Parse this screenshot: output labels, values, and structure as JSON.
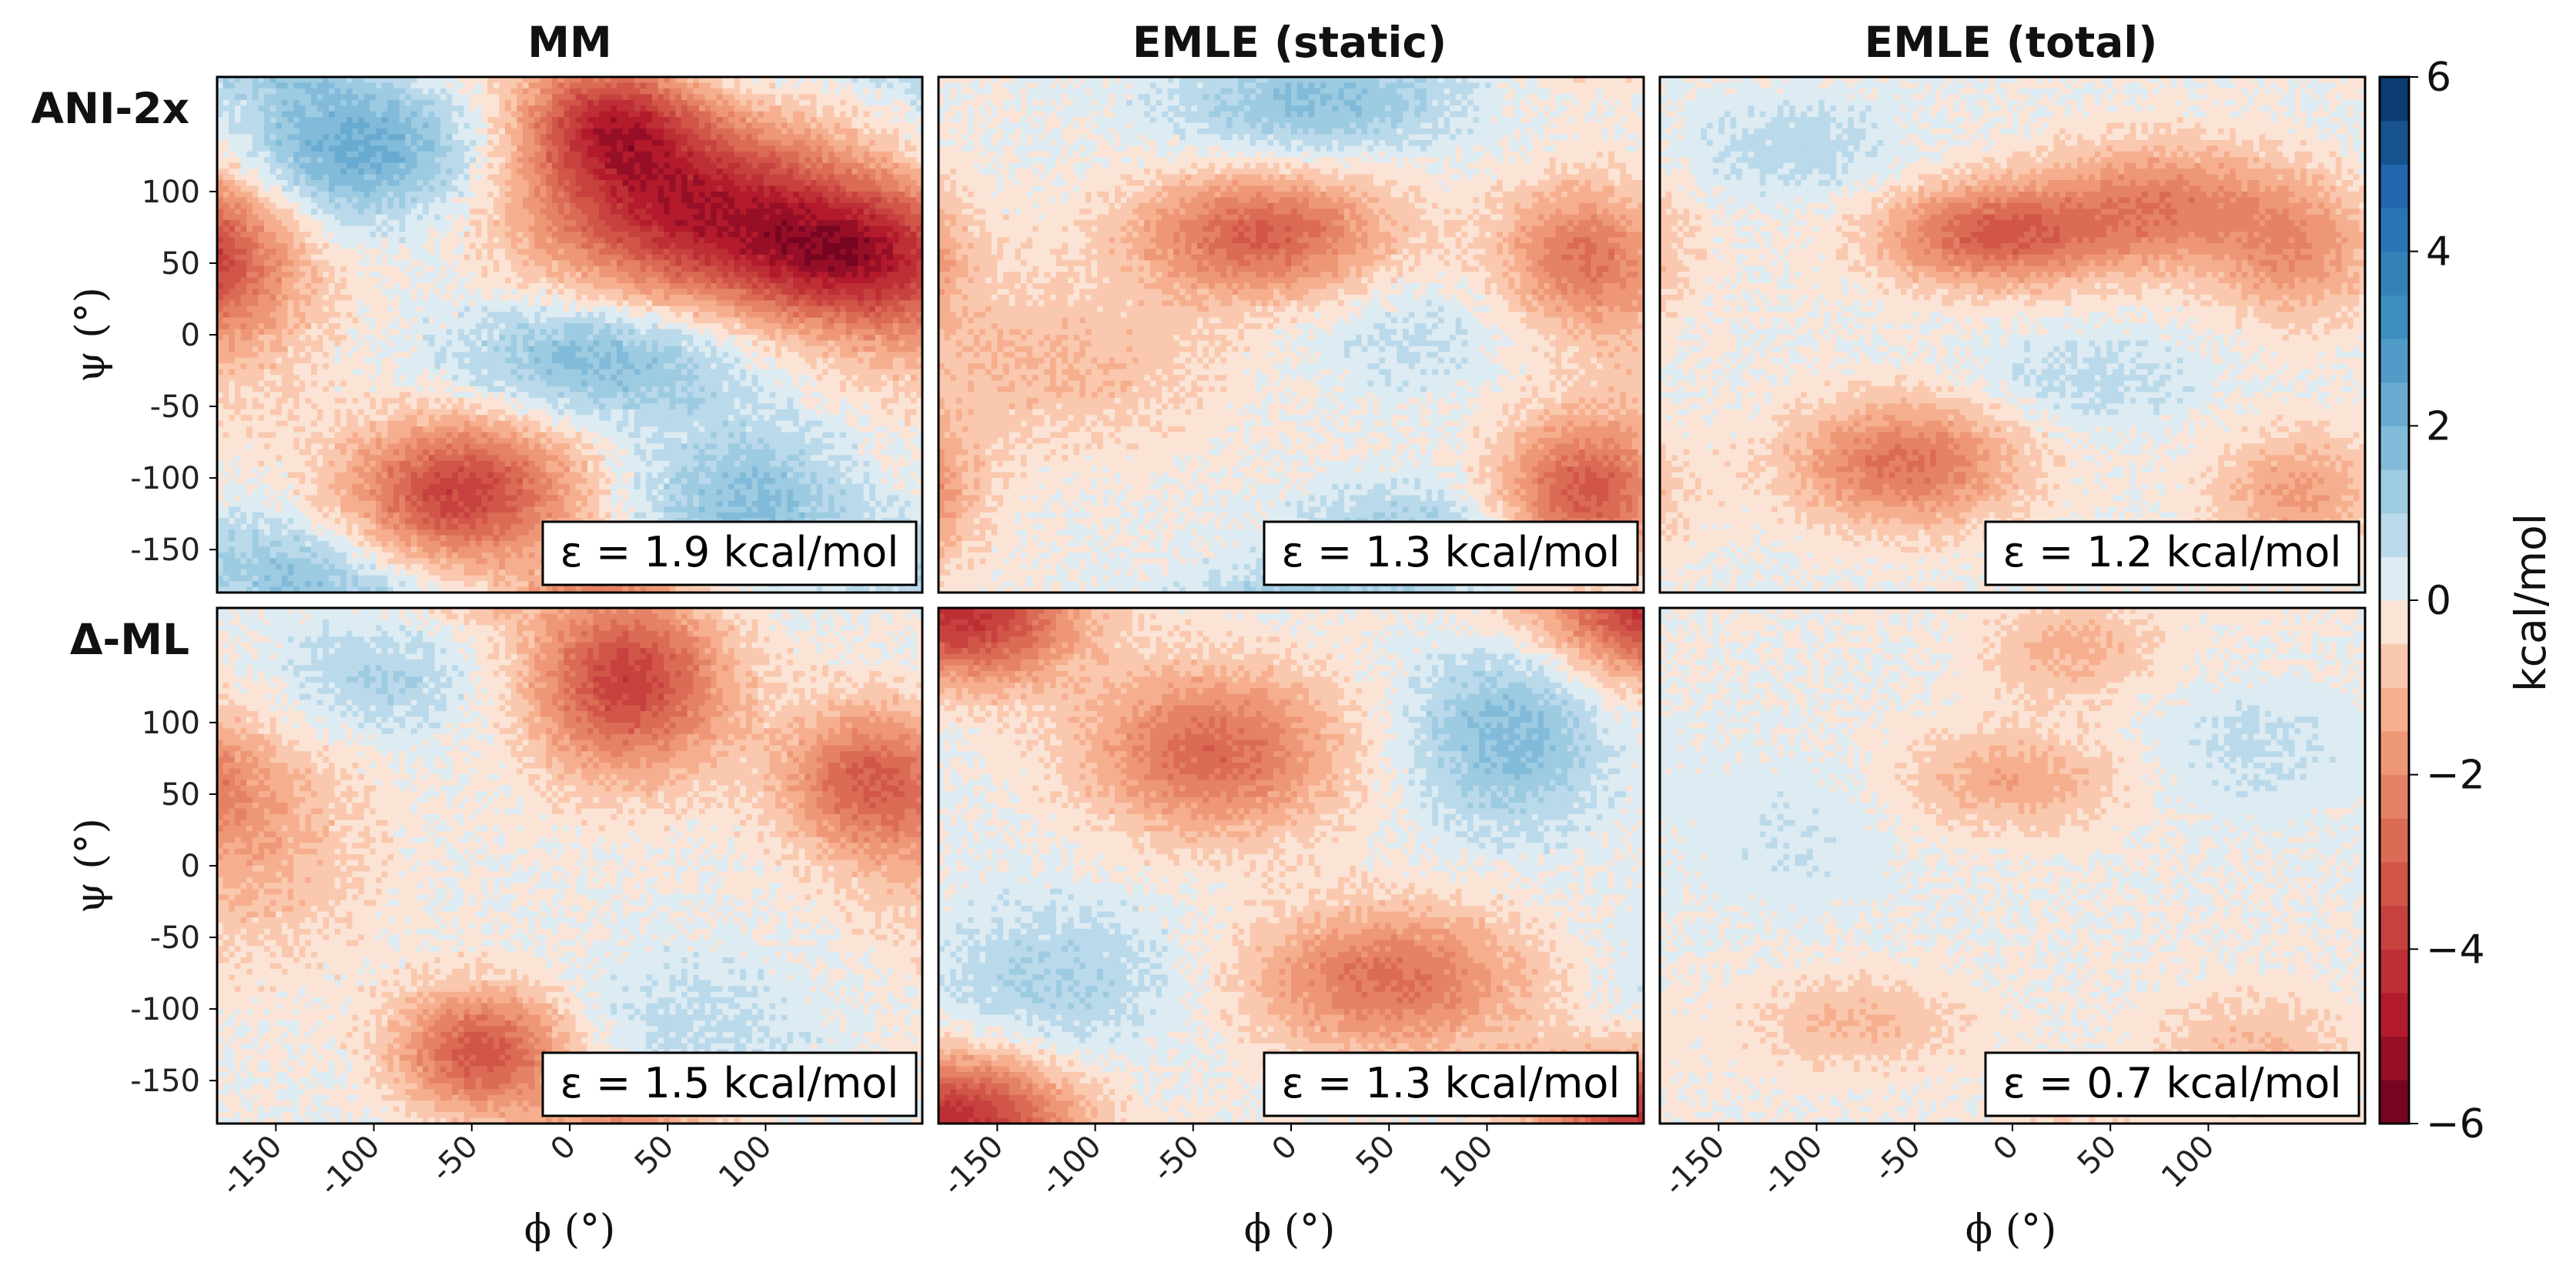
{
  "chart_data": {
    "type": "heatmap",
    "description_kind": "contour",
    "column_titles": [
      "MM",
      "EMLE (static)",
      "EMLE (total)"
    ],
    "row_titles": [
      "ANI-2x",
      "Δ-ML"
    ],
    "xlabel": "ϕ (°)",
    "ylabel": "ψ (°)",
    "x_ticks": [
      "-150",
      "-100",
      "-50",
      "0",
      "50",
      "100"
    ],
    "y_ticks": [
      "100",
      "50",
      "0",
      "-50",
      "-100",
      "-150"
    ],
    "xlim": [
      -180,
      180
    ],
    "ylim": [
      -180,
      180
    ],
    "colorbar": {
      "label": "kcal/mol",
      "range": [
        -6,
        6
      ],
      "ticks": [
        "6",
        "4",
        "2",
        "0",
        "−2",
        "−4",
        "−6"
      ],
      "colormap": "RdBu",
      "levels": 24
    },
    "panels": [
      {
        "row": 0,
        "col": 0,
        "annotation": "ε = 1.9 kcal/mol",
        "epsilon": 1.9,
        "features": [
          {
            "x": 60,
            "y": 90,
            "sx": 55,
            "sy": 45,
            "amp": -4.5
          },
          {
            "x": 140,
            "y": 55,
            "sx": 40,
            "sy": 35,
            "amp": -3.8
          },
          {
            "x": 20,
            "y": 150,
            "sx": 30,
            "sy": 30,
            "amp": -3.5
          },
          {
            "x": -55,
            "y": -110,
            "sx": 40,
            "sy": 35,
            "amp": -3.8
          },
          {
            "x": -110,
            "y": 130,
            "sx": 45,
            "sy": 35,
            "amp": 2.3
          },
          {
            "x": 15,
            "y": -15,
            "sx": 50,
            "sy": 30,
            "amp": 1.8
          },
          {
            "x": 90,
            "y": -120,
            "sx": 40,
            "sy": 40,
            "amp": 1.6
          },
          {
            "x": -175,
            "y": 40,
            "sx": 35,
            "sy": 60,
            "amp": -1.4
          },
          {
            "x": -150,
            "y": -160,
            "sx": 40,
            "sy": 25,
            "amp": 1.2
          }
        ]
      },
      {
        "row": 0,
        "col": 1,
        "annotation": "ε = 1.3 kcal/mol",
        "epsilon": 1.3,
        "features": [
          {
            "x": -15,
            "y": 70,
            "sx": 45,
            "sy": 30,
            "amp": -3.0
          },
          {
            "x": 150,
            "y": 55,
            "sx": 30,
            "sy": 35,
            "amp": -2.5
          },
          {
            "x": 150,
            "y": -110,
            "sx": 30,
            "sy": 35,
            "amp": -3.2
          },
          {
            "x": 10,
            "y": 160,
            "sx": 50,
            "sy": 25,
            "amp": 1.5
          },
          {
            "x": 60,
            "y": -140,
            "sx": 40,
            "sy": 25,
            "amp": 1.2
          },
          {
            "x": -120,
            "y": -20,
            "sx": 60,
            "sy": 40,
            "amp": -1.0
          },
          {
            "x": 60,
            "y": 0,
            "sx": 40,
            "sy": 30,
            "amp": 0.6
          }
        ]
      },
      {
        "row": 0,
        "col": 2,
        "annotation": "ε = 1.2 kcal/mol",
        "epsilon": 1.2,
        "features": [
          {
            "x": -10,
            "y": 70,
            "sx": 40,
            "sy": 25,
            "amp": -3.0
          },
          {
            "x": 75,
            "y": 90,
            "sx": 40,
            "sy": 30,
            "amp": -2.2
          },
          {
            "x": -55,
            "y": -90,
            "sx": 40,
            "sy": 30,
            "amp": -2.6
          },
          {
            "x": 145,
            "y": 60,
            "sx": 30,
            "sy": 35,
            "amp": -1.8
          },
          {
            "x": 145,
            "y": -110,
            "sx": 30,
            "sy": 30,
            "amp": -1.6
          },
          {
            "x": -110,
            "y": 130,
            "sx": 40,
            "sy": 25,
            "amp": 0.8
          },
          {
            "x": 40,
            "y": -30,
            "sx": 40,
            "sy": 25,
            "amp": 0.7
          }
        ]
      },
      {
        "row": 1,
        "col": 0,
        "annotation": "ε = 1.5 kcal/mol",
        "epsilon": 1.5,
        "features": [
          {
            "x": 30,
            "y": 130,
            "sx": 35,
            "sy": 45,
            "amp": -3.8
          },
          {
            "x": 150,
            "y": 60,
            "sx": 30,
            "sy": 35,
            "amp": -2.6
          },
          {
            "x": -45,
            "y": -130,
            "sx": 30,
            "sy": 30,
            "amp": -3.3
          },
          {
            "x": -100,
            "y": 130,
            "sx": 40,
            "sy": 30,
            "amp": 1.0
          },
          {
            "x": -160,
            "y": 20,
            "sx": 40,
            "sy": 60,
            "amp": -1.2
          },
          {
            "x": 60,
            "y": -120,
            "sx": 45,
            "sy": 40,
            "amp": 0.8
          }
        ]
      },
      {
        "row": 1,
        "col": 1,
        "annotation": "ε = 1.3 kcal/mol",
        "epsilon": 1.3,
        "features": [
          {
            "x": -40,
            "y": 80,
            "sx": 45,
            "sy": 40,
            "amp": -2.8
          },
          {
            "x": 50,
            "y": -80,
            "sx": 50,
            "sy": 35,
            "amp": -2.6
          },
          {
            "x": -160,
            "y": 160,
            "sx": 35,
            "sy": 30,
            "amp": -2.0
          },
          {
            "x": 110,
            "y": 90,
            "sx": 35,
            "sy": 45,
            "amp": 1.7
          },
          {
            "x": -120,
            "y": -80,
            "sx": 50,
            "sy": 40,
            "amp": 1.0
          },
          {
            "x": -160,
            "y": -170,
            "sx": 40,
            "sy": 30,
            "amp": -1.8
          },
          {
            "x": 160,
            "y": -170,
            "sx": 40,
            "sy": 30,
            "amp": -1.6
          }
        ]
      },
      {
        "row": 1,
        "col": 2,
        "annotation": "ε = 0.7 kcal/mol",
        "epsilon": 0.7,
        "features": [
          {
            "x": 0,
            "y": 60,
            "sx": 40,
            "sy": 25,
            "amp": -1.4
          },
          {
            "x": 30,
            "y": 150,
            "sx": 30,
            "sy": 25,
            "amp": -1.2
          },
          {
            "x": -80,
            "y": -110,
            "sx": 40,
            "sy": 25,
            "amp": -1.0
          },
          {
            "x": 120,
            "y": -130,
            "sx": 35,
            "sy": 30,
            "amp": -1.0
          },
          {
            "x": 120,
            "y": 80,
            "sx": 40,
            "sy": 30,
            "amp": 0.6
          },
          {
            "x": -110,
            "y": 20,
            "sx": 40,
            "sy": 40,
            "amp": 0.4
          }
        ]
      }
    ]
  }
}
